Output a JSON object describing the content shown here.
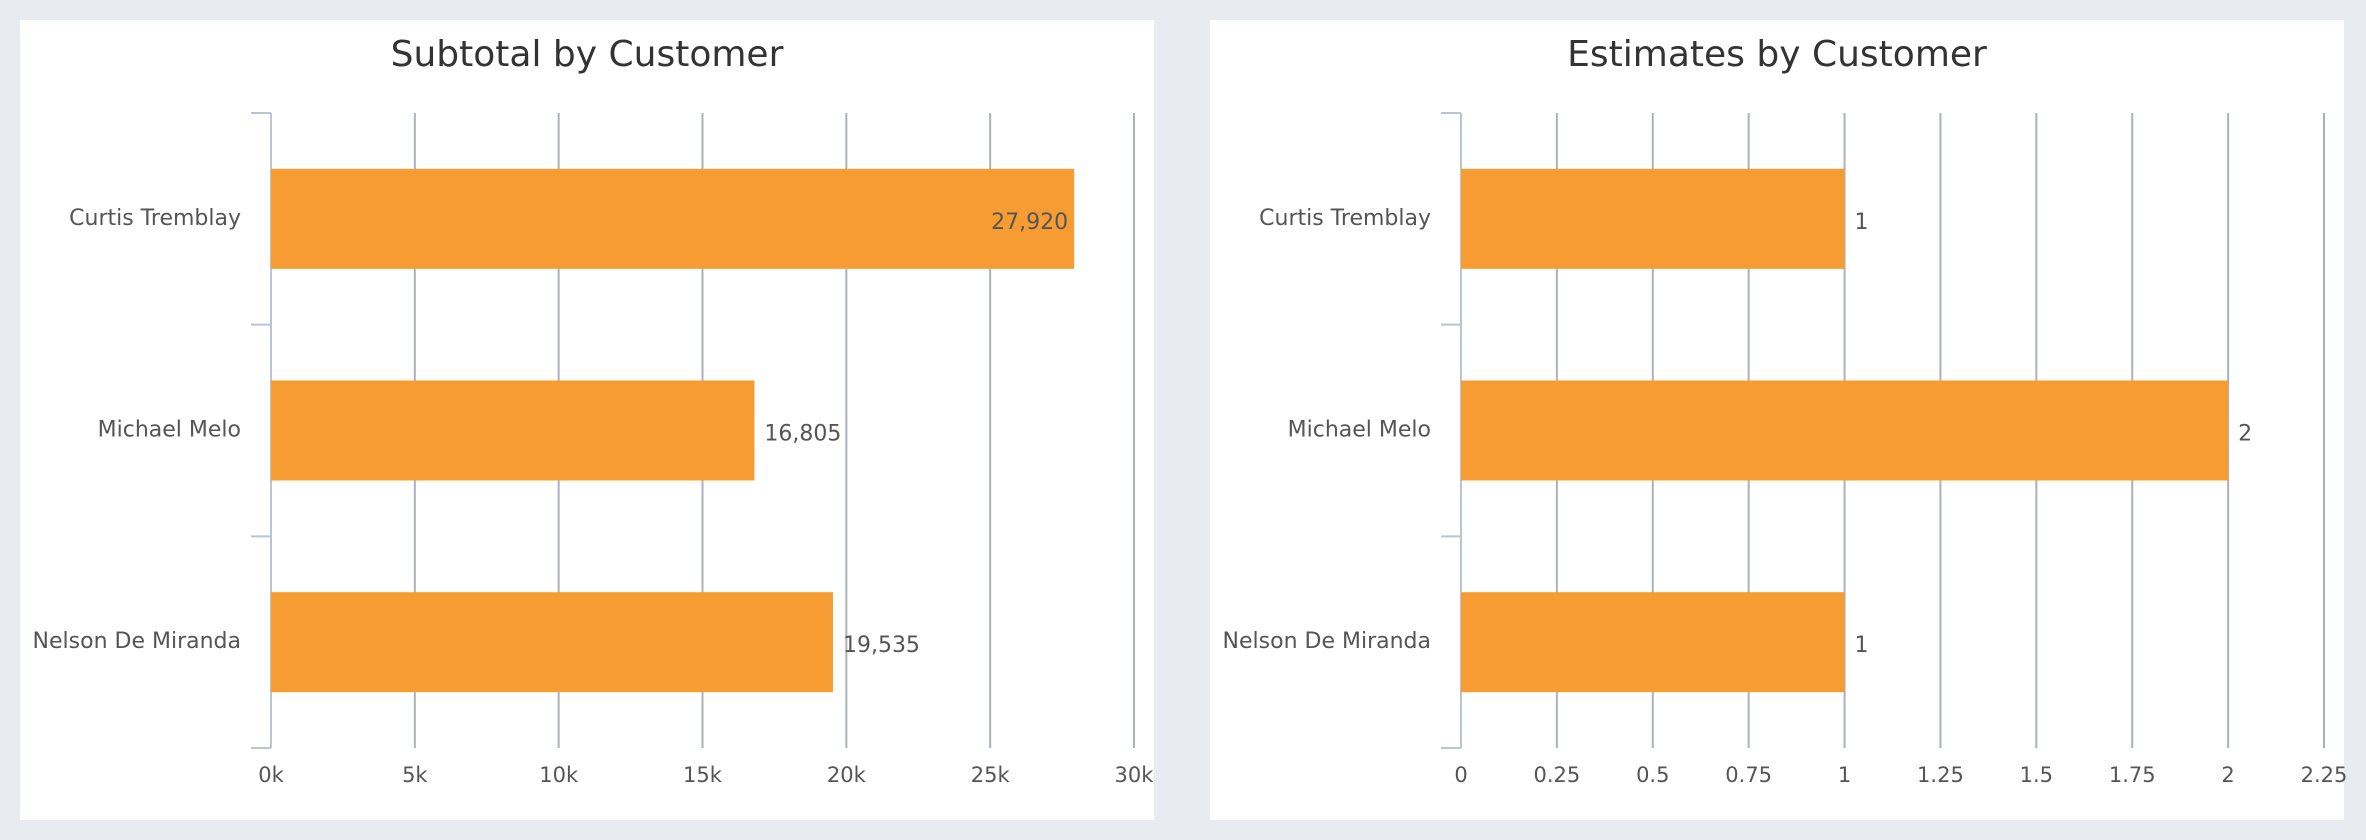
{
  "chart_data": [
    {
      "type": "bar",
      "orientation": "horizontal",
      "title": "Subtotal by Customer",
      "categories": [
        "Curtis Tremblay",
        "Michael Melo",
        "Nelson De Miranda"
      ],
      "values": [
        27920,
        16805,
        19535
      ],
      "data_labels": [
        "27,920",
        "16,805",
        "19,535"
      ],
      "xlim": [
        0,
        30000
      ],
      "ticks": [
        0,
        5000,
        10000,
        15000,
        20000,
        25000,
        30000
      ],
      "tick_labels": [
        "0k",
        "5k",
        "10k",
        "15k",
        "20k",
        "25k",
        "30k"
      ],
      "bar_color": "#f79c33",
      "grid": true,
      "legend": "none"
    },
    {
      "type": "bar",
      "orientation": "horizontal",
      "title": "Estimates by Customer",
      "categories": [
        "Curtis Tremblay",
        "Michael Melo",
        "Nelson De Miranda"
      ],
      "values": [
        1,
        2,
        1
      ],
      "data_labels": [
        "1",
        "2",
        "1"
      ],
      "xlim": [
        0,
        2.25
      ],
      "ticks": [
        0,
        0.25,
        0.5,
        0.75,
        1,
        1.25,
        1.5,
        1.75,
        2,
        2.25
      ],
      "tick_labels": [
        "0",
        "0.25",
        "0.5",
        "0.75",
        "1",
        "1.25",
        "1.5",
        "1.75",
        "2",
        "2.25"
      ],
      "bar_color": "#f79c33",
      "grid": true,
      "legend": "none"
    }
  ]
}
